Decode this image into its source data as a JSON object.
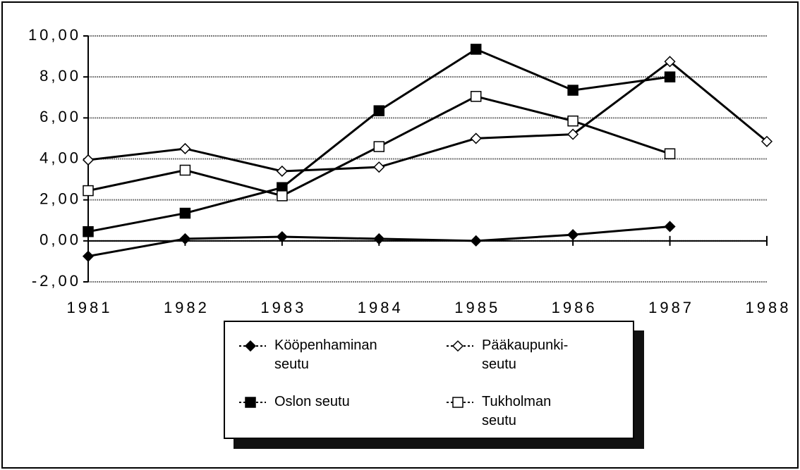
{
  "chart_data": {
    "type": "line",
    "x": [
      1981,
      1982,
      1983,
      1984,
      1985,
      1986,
      1987,
      1988
    ],
    "xlim": [
      1981,
      1988
    ],
    "xticks": [
      1981,
      1982,
      1983,
      1984,
      1985,
      1986,
      1987,
      1988
    ],
    "ylim": [
      -2,
      10
    ],
    "yticks": [
      {
        "value": -2,
        "label": "-2,00"
      },
      {
        "value": 0,
        "label": "0,00"
      },
      {
        "value": 2,
        "label": "2,00"
      },
      {
        "value": 4,
        "label": "4,00"
      },
      {
        "value": 6,
        "label": "6,00"
      },
      {
        "value": 8,
        "label": "8,00"
      },
      {
        "value": 10,
        "label": "10,00"
      }
    ],
    "grid": true,
    "series": [
      {
        "name": "Kööpenhaminan seutu",
        "color": "#000000",
        "marker": "diamond",
        "filled": true,
        "values": [
          -0.75,
          0.1,
          0.2,
          0.1,
          0.0,
          0.3,
          0.7,
          null
        ]
      },
      {
        "name": "Pääkaupunki-seutu",
        "color": "#000000",
        "marker": "diamond",
        "filled": false,
        "values": [
          3.95,
          4.5,
          3.4,
          3.6,
          5.0,
          5.2,
          8.75,
          4.85
        ]
      },
      {
        "name": "Oslon seutu",
        "color": "#000000",
        "marker": "square",
        "filled": true,
        "values": [
          0.45,
          1.35,
          2.6,
          6.35,
          9.35,
          7.35,
          8.0,
          null
        ]
      },
      {
        "name": "Tukholman seutu",
        "color": "#000000",
        "marker": "square",
        "filled": false,
        "values": [
          2.45,
          3.45,
          2.2,
          4.6,
          7.05,
          5.85,
          4.25,
          null
        ]
      }
    ]
  }
}
